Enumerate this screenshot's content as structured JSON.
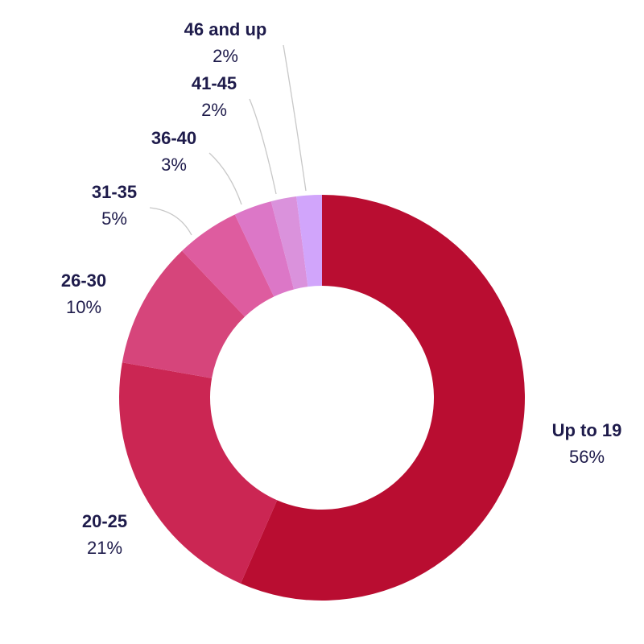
{
  "chart_data": {
    "type": "pie",
    "donut": true,
    "title": "",
    "categories": [
      "Up to 19",
      "20-25",
      "26-30",
      "31-35",
      "36-40",
      "41-45",
      "46 and up"
    ],
    "values": [
      56,
      21,
      10,
      5,
      3,
      2,
      2
    ],
    "value_labels": [
      "56%",
      "21%",
      "10%",
      "5%",
      "3%",
      "2%",
      "2%"
    ],
    "colors": [
      "#b90d31",
      "#cb2653",
      "#d6457b",
      "#de5c9f",
      "#dc77c7",
      "#da92dc",
      "#d1a5fb"
    ],
    "text_color": "#1e1b4b",
    "leader_color": "#c8c8c8",
    "legend": "none",
    "start": "top",
    "direction": "clockwise"
  }
}
